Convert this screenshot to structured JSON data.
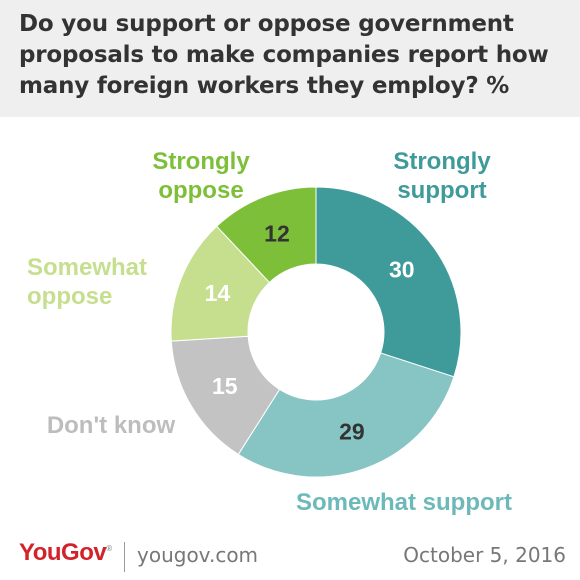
{
  "title": "Do you support or oppose government proposals to make companies report how many foreign workers they employ? %",
  "footer": {
    "brand": "YouGov",
    "site": "yougov.com",
    "date": "October 5, 2016"
  },
  "chart_data": {
    "type": "pie",
    "donut": true,
    "title": "Do you support or oppose government proposals to make companies report how many foreign workers they employ? %",
    "slices": [
      {
        "label": "Strongly support",
        "value": 30,
        "color": "#3f9a9a",
        "label_color": "#3f9a9a",
        "value_color": "#ffffff"
      },
      {
        "label": "Somewhat support",
        "value": 29,
        "color": "#87c4c4",
        "label_color": "#6db9b9",
        "value_color": "#333333"
      },
      {
        "label": "Don't know",
        "value": 15,
        "color": "#c3c3c3",
        "label_color": "#bdbdbd",
        "value_color": "#ffffff"
      },
      {
        "label": "Somewhat oppose",
        "value": 14,
        "color": "#c6df8f",
        "label_color": "#c6df8f",
        "value_color": "#ffffff"
      },
      {
        "label": "Strongly oppose",
        "value": 12,
        "color": "#7ebf3a",
        "label_color": "#7ebf3a",
        "value_color": "#333333"
      }
    ]
  }
}
